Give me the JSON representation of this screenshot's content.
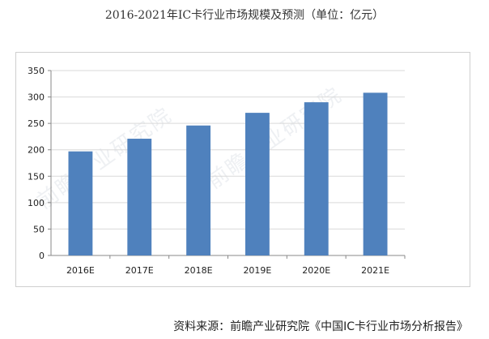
{
  "chart_data": {
    "type": "bar",
    "title": "2016-2021年IC卡行业市场规模及预测（单位：亿元）",
    "categories": [
      "2016E",
      "2017E",
      "2018E",
      "2019E",
      "2020E",
      "2021E"
    ],
    "values": [
      197,
      221,
      246,
      270,
      290,
      308
    ],
    "ylim": [
      0,
      350
    ],
    "yticks": [
      0,
      50,
      100,
      150,
      200,
      250,
      300,
      350
    ],
    "grid": true,
    "bar_color": "#4f81bd"
  },
  "source_note": "资料来源：前瞻产业研究院《中国IC卡行业市场分析报告》",
  "watermark": "前瞻产业研究院"
}
